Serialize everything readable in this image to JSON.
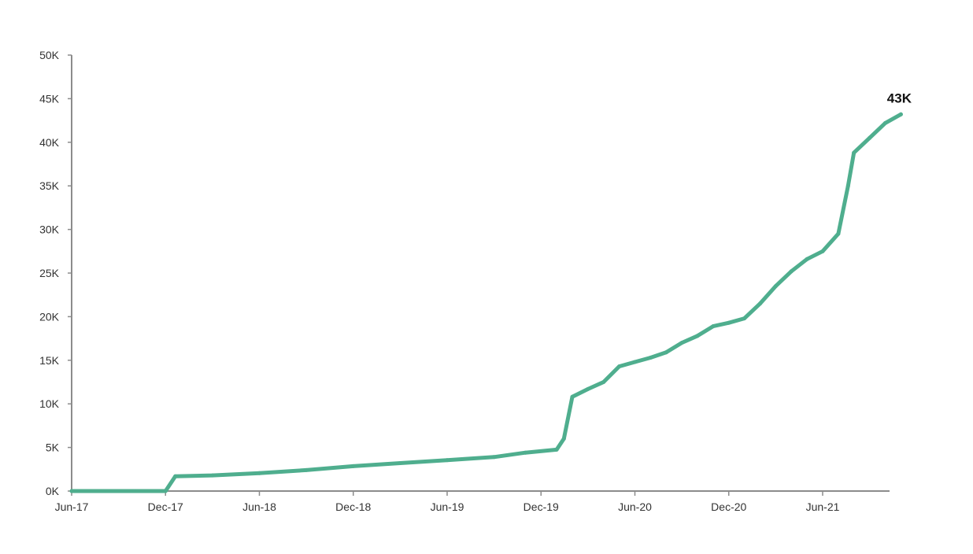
{
  "chart_data": {
    "type": "line",
    "title": "",
    "xlabel": "",
    "ylabel": "",
    "x_tick_labels": [
      "Jun-17",
      "Dec-17",
      "Jun-18",
      "Dec-18",
      "Jun-19",
      "Dec-19",
      "Jun-20",
      "Dec-20",
      "Jun-21"
    ],
    "y_tick_labels": [
      "0K",
      "5K",
      "10K",
      "15K",
      "20K",
      "25K",
      "30K",
      "35K",
      "40K",
      "45K",
      "50K"
    ],
    "xlim": [
      "2017-06",
      "2021-12"
    ],
    "ylim": [
      0,
      50000
    ],
    "grid": false,
    "legend": "none",
    "series": [
      {
        "color": "#4fae8e",
        "points": [
          {
            "x": "2017-06",
            "y": 0
          },
          {
            "x": "2017-08",
            "y": 0
          },
          {
            "x": "2017-10",
            "y": 0
          },
          {
            "x": "2017-12",
            "y": 0
          },
          {
            "x": "2017-12-20",
            "y": 1700
          },
          {
            "x": "2018-03",
            "y": 1800
          },
          {
            "x": "2018-06",
            "y": 2050
          },
          {
            "x": "2018-09",
            "y": 2400
          },
          {
            "x": "2018-12",
            "y": 2850
          },
          {
            "x": "2019-03",
            "y": 3200
          },
          {
            "x": "2019-06",
            "y": 3550
          },
          {
            "x": "2019-09",
            "y": 3900
          },
          {
            "x": "2019-11",
            "y": 4400
          },
          {
            "x": "2020-01",
            "y": 4750
          },
          {
            "x": "2020-01-15",
            "y": 6000
          },
          {
            "x": "2020-02",
            "y": 10800
          },
          {
            "x": "2020-03",
            "y": 11700
          },
          {
            "x": "2020-04",
            "y": 12500
          },
          {
            "x": "2020-05",
            "y": 14300
          },
          {
            "x": "2020-06",
            "y": 14800
          },
          {
            "x": "2020-07",
            "y": 15300
          },
          {
            "x": "2020-08",
            "y": 15900
          },
          {
            "x": "2020-09",
            "y": 17000
          },
          {
            "x": "2020-10",
            "y": 17800
          },
          {
            "x": "2020-11",
            "y": 18900
          },
          {
            "x": "2020-12",
            "y": 19300
          },
          {
            "x": "2021-01",
            "y": 19800
          },
          {
            "x": "2021-02",
            "y": 21500
          },
          {
            "x": "2021-03",
            "y": 23500
          },
          {
            "x": "2021-04",
            "y": 25200
          },
          {
            "x": "2021-05",
            "y": 26600
          },
          {
            "x": "2021-06",
            "y": 27500
          },
          {
            "x": "2021-07",
            "y": 29500
          },
          {
            "x": "2021-07-20",
            "y": 35000
          },
          {
            "x": "2021-08",
            "y": 38800
          },
          {
            "x": "2021-09",
            "y": 40500
          },
          {
            "x": "2021-10",
            "y": 42200
          },
          {
            "x": "2021-11",
            "y": 43200
          }
        ]
      }
    ],
    "annotations": [
      {
        "text": "43K",
        "x": "2021-11",
        "y": 43200
      }
    ]
  }
}
